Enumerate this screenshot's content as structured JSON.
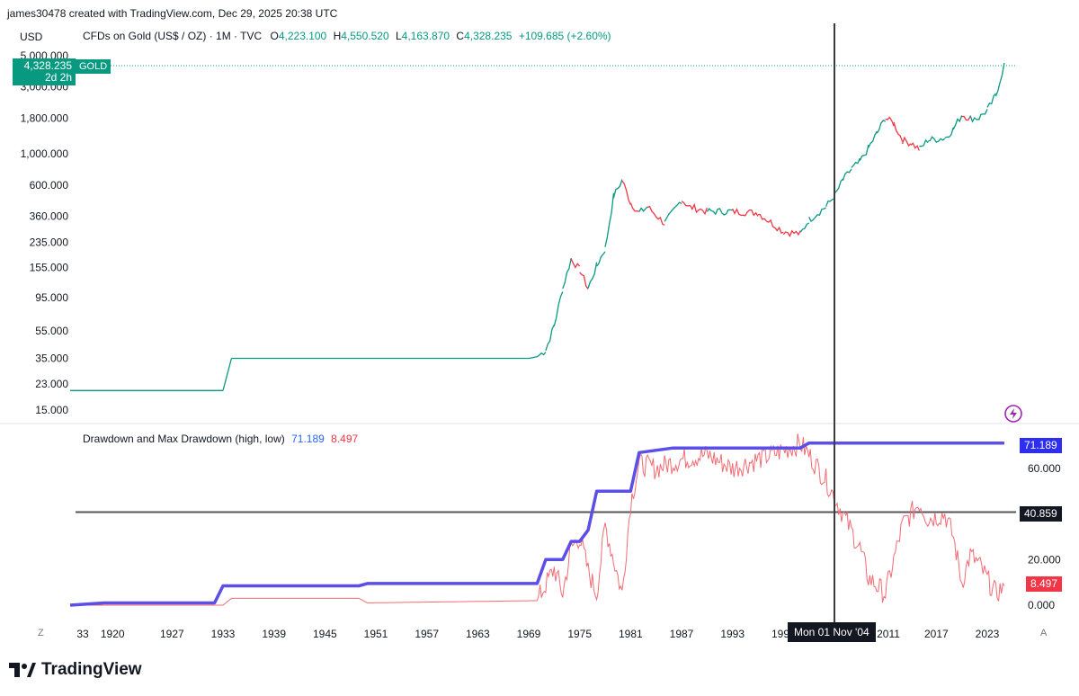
{
  "header": {
    "credit": "james30478 created with TradingView.com, Dec 29, 2025 20:38 UTC",
    "currency": "USD"
  },
  "legend": {
    "symbol": "CFDs on Gold (US$ / OZ) · 1M · TVC",
    "open_label": "O",
    "open": "4,223.100",
    "high_label": "H",
    "high": "4,550.520",
    "low_label": "L",
    "low": "4,163.870",
    "close_label": "C",
    "close": "4,328.235",
    "change": "+109.685 (+2.60%)"
  },
  "price_tag": {
    "value": "4,328.235",
    "countdown": "2d 2h",
    "badge": "GOLD"
  },
  "indicator": {
    "name": "Drawdown and Max Drawdown (high, low)",
    "max_value": "71.189",
    "dd_value": "8.497",
    "hline_value": "40.859"
  },
  "crosshair": {
    "date_label": "Mon 01 Nov '04"
  },
  "controls": {
    "z": "Z",
    "a": "A"
  },
  "brand": {
    "name": "TradingView"
  },
  "colors": {
    "up": "#089981",
    "down": "#f23645",
    "max_drawdown": "#5b4fe8",
    "drawdown": "#f26b73",
    "crosshair": "#3c3c3c"
  },
  "chart_data": [
    {
      "type": "line",
      "title": "CFDs on Gold (US$ / OZ) · 1M · TVC",
      "y_scale": "log",
      "y_ticks": [
        5000,
        3000,
        1800,
        1000,
        600,
        360,
        235,
        155,
        95,
        55,
        35,
        23,
        15
      ],
      "y_tick_labels": [
        "5,000.000",
        "3,000.000",
        "1,800.000",
        "1,000.000",
        "600.000",
        "360.000",
        "235.000",
        "155.000",
        "95.000",
        "55.000",
        "35.000",
        "23.000",
        "15.000"
      ],
      "x_tick_labels": [
        "33",
        "1920",
        "1927",
        "1933",
        "1939",
        "1945",
        "1951",
        "1957",
        "1963",
        "1969",
        "1975",
        "1981",
        "1987",
        "1993",
        "199",
        "2011",
        "2017",
        "2023"
      ],
      "series": [
        {
          "x": [
            1915,
            1933,
            1934,
            1935,
            1969,
            1970,
            1971,
            1972,
            1973,
            1974,
            1975,
            1976,
            1977,
            1978,
            1979,
            1980,
            1981,
            1982,
            1983,
            1985,
            1987,
            1988,
            1990,
            1993,
            1996,
            1999,
            2001,
            2002,
            2004,
            2005,
            2006,
            2007,
            2008,
            2009,
            2010,
            2011,
            2012,
            2013,
            2014,
            2015,
            2016,
            2018,
            2019,
            2020,
            2021,
            2022,
            2023,
            2024,
            2025
          ],
          "values": [
            20.67,
            20.67,
            35,
            35,
            35,
            36,
            40,
            60,
            110,
            180,
            150,
            110,
            160,
            210,
            500,
            650,
            450,
            380,
            420,
            320,
            470,
            420,
            390,
            390,
            380,
            280,
            270,
            340,
            420,
            500,
            650,
            780,
            880,
            1100,
            1400,
            1800,
            1650,
            1250,
            1200,
            1080,
            1250,
            1300,
            1500,
            1900,
            1800,
            1800,
            2050,
            2600,
            4328
          ]
        }
      ]
    },
    {
      "type": "line",
      "title": "Drawdown and Max Drawdown (high, low)",
      "y_ticks": [
        60,
        20,
        0
      ],
      "y_tick_labels": [
        "60.000",
        "20.000",
        "0.000"
      ],
      "hline": 40.859,
      "series": [
        {
          "name": "Max Drawdown",
          "x": [
            1915,
            1919,
            1932,
            1933,
            1949,
            1950,
            1970,
            1971,
            1973,
            1974,
            1975,
            1976,
            1977,
            1981,
            1982,
            1986,
            2001,
            2002,
            2025
          ],
          "values": [
            0,
            1,
            1,
            8.5,
            8.5,
            9.5,
            9.5,
            20,
            20,
            28,
            28,
            33,
            50,
            50,
            67,
            69,
            69,
            71.189,
            71.189
          ]
        },
        {
          "name": "Drawdown",
          "x": [
            1915,
            1933,
            1934,
            1949,
            1950,
            1970,
            1972,
            1973,
            1974,
            1975,
            1976,
            1977,
            1978,
            1980,
            1981,
            1982,
            1984,
            1987,
            1990,
            1993,
            1996,
            1999,
            2001,
            2002,
            2004,
            2006,
            2008,
            2009,
            2011,
            2013,
            2015,
            2016,
            2018,
            2019,
            2020,
            2021,
            2022,
            2024,
            2025
          ],
          "values": [
            0,
            0,
            3,
            3,
            1,
            2,
            16,
            5,
            25,
            30,
            15,
            5,
            35,
            5,
            45,
            62,
            60,
            64,
            66,
            60,
            64,
            68,
            71,
            66,
            55,
            40,
            25,
            12,
            5,
            35,
            45,
            38,
            40,
            30,
            10,
            22,
            18,
            5,
            8.497
          ]
        }
      ]
    }
  ]
}
